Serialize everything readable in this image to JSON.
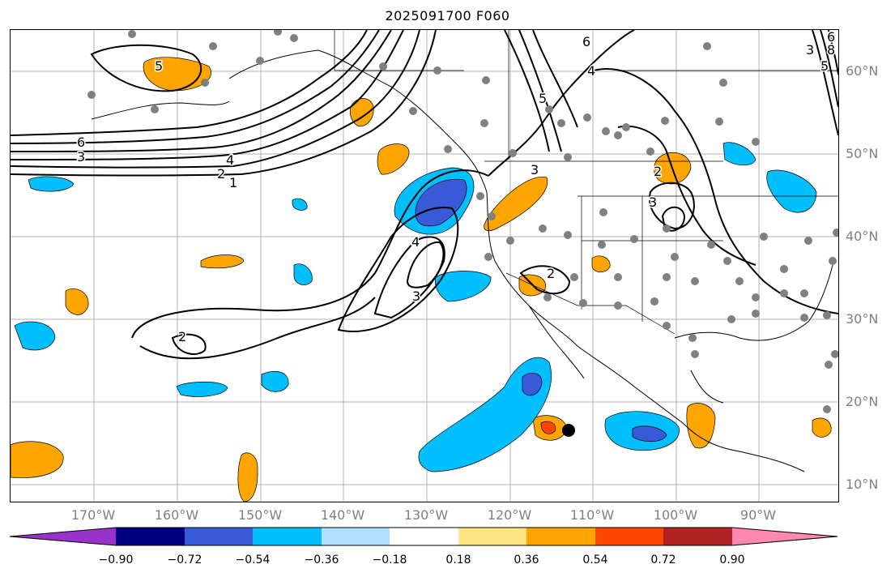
{
  "title": "2025091700 F060",
  "lat_labels": [
    "60°N",
    "50°N",
    "40°N",
    "30°N",
    "20°N",
    "10°N"
  ],
  "lon_labels": [
    "170°W",
    "160°W",
    "150°W",
    "140°W",
    "130°W",
    "120°W",
    "110°W",
    "100°W",
    "90°W"
  ],
  "colorbar": {
    "ticks": [
      "−0.90",
      "−0.72",
      "−0.54",
      "−0.36",
      "−0.18",
      "0.18",
      "0.36",
      "0.54",
      "0.72",
      "0.90"
    ],
    "colors": [
      "#9932cc",
      "#000080",
      "#3a5bd9",
      "#00bfff",
      "#b0e0ff",
      "#ffffff",
      "#ffe680",
      "#ffa500",
      "#ff4500",
      "#b22222",
      "#ff88b0"
    ]
  },
  "contour_labels": [
    "6",
    "3",
    "4",
    "2",
    "1",
    "5",
    "2",
    "3",
    "4",
    "3",
    "2",
    "5",
    "6",
    "4",
    "3",
    "2",
    "3",
    "5",
    "6",
    "8"
  ],
  "colors": {
    "coast": "#000000",
    "grid": "#b0b0b0",
    "station": "#808080"
  }
}
